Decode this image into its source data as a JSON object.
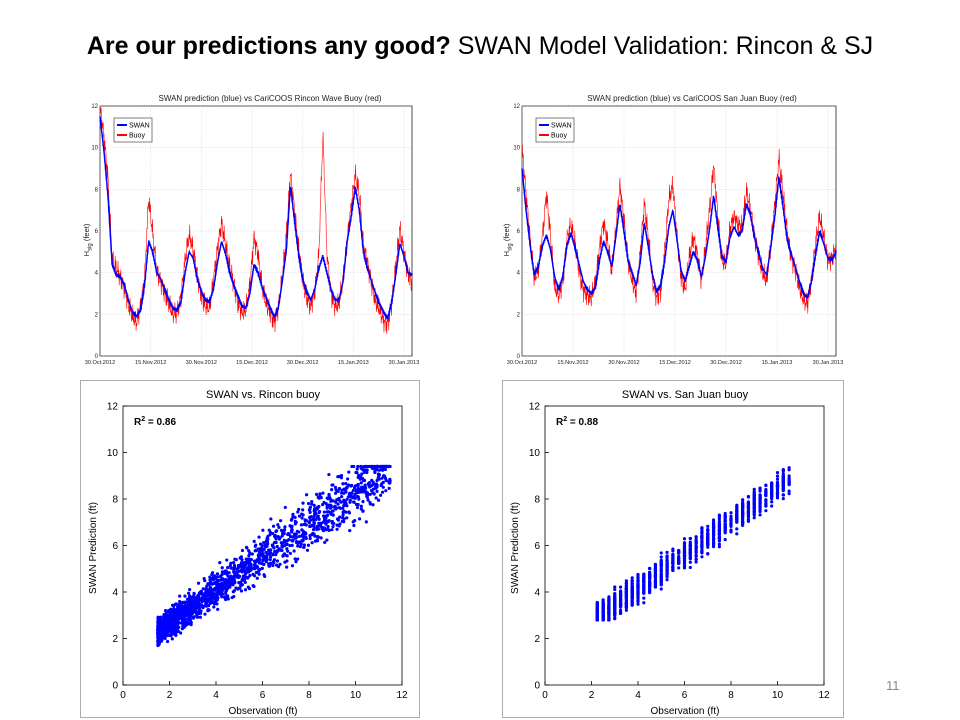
{
  "slide": {
    "title_bold": "Are our predictions any good?",
    "title_rest": "SWAN Model Validation: Rincon & SJ",
    "page_number": "11"
  },
  "chart_data": [
    {
      "id": "rincon-ts",
      "type": "line",
      "title": "SWAN prediction (blue) vs CariCOOS Rincon Wave Buoy (red)",
      "ylabel_main": "H",
      "ylabel_sub": "sig",
      "ylabel_unit": " (feet)",
      "ylim": [
        0,
        12
      ],
      "yticks": [
        0,
        2,
        4,
        6,
        8,
        10,
        12
      ],
      "xticks": [
        "30.Oct.2012",
        "15.Nov.2012",
        "30.Nov.2012",
        "15.Dec.2012",
        "30.Dec.2012",
        "15.Jan.2013",
        "30.Jan.2013"
      ],
      "legend": "top-left",
      "grid": true,
      "series": [
        {
          "name": "SWAN",
          "color": "#0000ff",
          "values": [
            11.5,
            9.8,
            7.6,
            4.4,
            3.9,
            3.8,
            3.4,
            2.7,
            2.1,
            1.9,
            2.2,
            3.4,
            5.5,
            5.0,
            4.0,
            3.7,
            3.2,
            2.7,
            2.3,
            2.2,
            2.6,
            4.0,
            5.0,
            4.7,
            3.7,
            3.1,
            2.7,
            2.6,
            3.2,
            4.5,
            5.5,
            4.9,
            4.0,
            3.4,
            2.9,
            2.4,
            2.3,
            3.0,
            4.4,
            4.0,
            3.3,
            2.8,
            2.3,
            1.9,
            2.3,
            3.6,
            5.1,
            8.2,
            6.5,
            4.9,
            3.7,
            3.1,
            2.7,
            3.2,
            4.2,
            4.8,
            4.0,
            3.2,
            2.7,
            2.7,
            3.6,
            5.5,
            6.7,
            8.1,
            7.0,
            5.0,
            4.2,
            3.6,
            3.0,
            2.5,
            2.1,
            1.8,
            2.6,
            3.9,
            5.4,
            4.8,
            4.0,
            3.9
          ]
        },
        {
          "name": "Buoy",
          "color": "#ff0000",
          "values": [
            12.0,
            10.5,
            8.5,
            4.6,
            4.2,
            3.8,
            3.3,
            2.5,
            1.9,
            1.6,
            2.4,
            3.7,
            7.6,
            5.9,
            4.1,
            3.6,
            3.0,
            2.5,
            2.0,
            2.1,
            2.9,
            4.6,
            5.8,
            5.1,
            3.9,
            2.9,
            2.4,
            2.3,
            3.6,
            5.2,
            6.4,
            5.3,
            4.3,
            3.5,
            2.6,
            2.1,
            2.2,
            3.4,
            5.7,
            4.9,
            3.3,
            2.5,
            2.1,
            1.6,
            2.3,
            3.8,
            5.8,
            8.8,
            7.0,
            5.2,
            3.6,
            2.8,
            2.4,
            3.1,
            4.8,
            10.6,
            5.0,
            3.0,
            2.4,
            2.5,
            3.7,
            5.6,
            7.2,
            8.7,
            7.8,
            5.3,
            4.5,
            3.5,
            2.6,
            2.2,
            1.7,
            1.5,
            2.5,
            4.3,
            6.1,
            5.0,
            4.0,
            3.5
          ]
        }
      ]
    },
    {
      "id": "sanjuan-ts",
      "type": "line",
      "title": "SWAN prediction (blue) vs CariCOOS San Juan Buoy (red)",
      "ylabel_main": "H",
      "ylabel_sub": "sig",
      "ylabel_unit": " (feet)",
      "ylim": [
        0,
        12
      ],
      "yticks": [
        0,
        2,
        4,
        6,
        8,
        10,
        12
      ],
      "xticks": [
        "30.Oct.2012",
        "15.Nov.2012",
        "30.Nov.2012",
        "15.Dec.2012",
        "30.Dec.2012",
        "15.Jan.2013",
        "30.Jan.2013"
      ],
      "legend": "top-left",
      "grid": true,
      "series": [
        {
          "name": "SWAN",
          "color": "#0000ff",
          "values": [
            9.0,
            7.0,
            5.3,
            3.9,
            4.3,
            5.3,
            5.8,
            5.1,
            3.8,
            3.2,
            3.8,
            5.3,
            5.9,
            5.2,
            4.4,
            3.6,
            3.2,
            3.0,
            3.3,
            4.6,
            5.5,
            5.0,
            4.3,
            5.7,
            7.3,
            6.0,
            4.6,
            4.0,
            3.4,
            4.5,
            6.4,
            5.2,
            3.9,
            3.1,
            3.4,
            4.6,
            6.2,
            7.0,
            5.6,
            4.1,
            3.6,
            4.3,
            5.0,
            4.6,
            3.8,
            4.8,
            6.1,
            7.7,
            6.2,
            4.8,
            4.5,
            5.7,
            6.2,
            5.8,
            6.0,
            7.3,
            6.8,
            5.7,
            5.0,
            4.2,
            3.9,
            5.2,
            6.7,
            8.6,
            7.2,
            5.6,
            4.9,
            4.3,
            3.6,
            3.0,
            2.8,
            3.6,
            4.9,
            6.0,
            5.4,
            4.7,
            4.6,
            5.0
          ]
        },
        {
          "name": "Buoy",
          "color": "#ff0000",
          "values": [
            10.0,
            7.8,
            5.6,
            3.7,
            4.1,
            5.7,
            7.8,
            5.8,
            3.3,
            2.9,
            3.6,
            5.6,
            6.3,
            5.4,
            4.1,
            3.2,
            2.9,
            2.8,
            3.5,
            5.2,
            6.4,
            5.5,
            4.0,
            6.0,
            8.2,
            6.6,
            4.5,
            3.6,
            3.0,
            5.0,
            7.3,
            5.7,
            3.6,
            2.8,
            3.1,
            5.0,
            7.5,
            8.2,
            5.8,
            3.8,
            3.2,
            4.7,
            5.7,
            4.9,
            3.6,
            5.2,
            7.0,
            9.2,
            6.8,
            4.6,
            4.4,
            6.1,
            6.7,
            6.3,
            6.2,
            7.9,
            7.1,
            5.8,
            4.8,
            4.0,
            3.6,
            5.4,
            7.3,
            9.5,
            7.8,
            6.0,
            4.8,
            4.2,
            3.3,
            2.7,
            2.5,
            3.7,
            5.4,
            6.7,
            5.7,
            4.6,
            4.7,
            5.2
          ]
        }
      ]
    },
    {
      "id": "rincon-scatter",
      "type": "scatter",
      "title": "SWAN vs. Rincon buoy",
      "xlabel": "Observation (ft)",
      "ylabel": "SWAN Prediction (ft)",
      "xlim": [
        0,
        12
      ],
      "ylim": [
        0,
        12
      ],
      "xticks": [
        0,
        2,
        4,
        6,
        8,
        10,
        12
      ],
      "yticks": [
        0,
        2,
        4,
        6,
        8,
        10,
        12
      ],
      "annotation_main": "R",
      "annotation_sup": "2",
      "annotation_rest": " = 0.86",
      "color": "#0000ff",
      "r2": 0.86,
      "x_range": [
        1.5,
        11.5
      ],
      "y_range": [
        1.7,
        9.4
      ],
      "points": 1800
    },
    {
      "id": "sanjuan-scatter",
      "type": "scatter",
      "title": "SWAN vs. San Juan buoy",
      "xlabel": "Observation (ft)",
      "ylabel": "SWAN Prediction (ft)",
      "xlim": [
        0,
        12
      ],
      "ylim": [
        0,
        12
      ],
      "xticks": [
        0,
        2,
        4,
        6,
        8,
        10,
        12
      ],
      "yticks": [
        0,
        2,
        4,
        6,
        8,
        10,
        12
      ],
      "annotation_main": "R",
      "annotation_sup": "2",
      "annotation_rest": " = 0.88",
      "color": "#0000ff",
      "r2": 0.88,
      "x_range": [
        2.2,
        10.5
      ],
      "y_range": [
        2.8,
        9.5
      ],
      "points": 1400
    }
  ]
}
